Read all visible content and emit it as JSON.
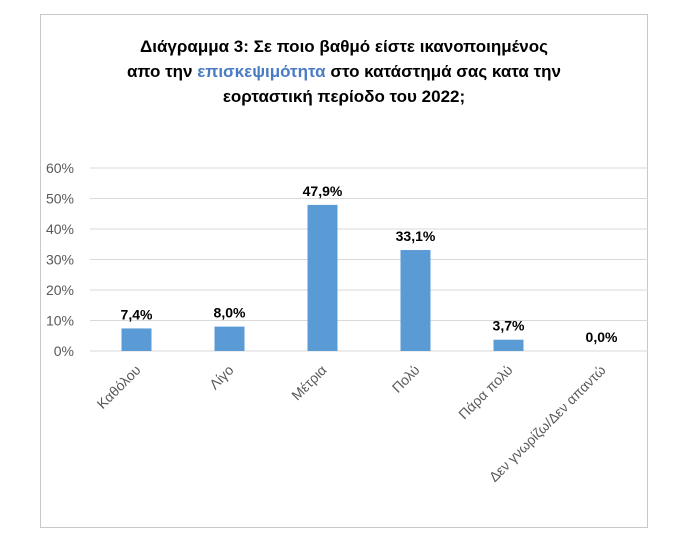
{
  "chart_data": {
    "type": "bar",
    "title_parts": [
      {
        "text": "Διάγραμμα 3: Σε ποιο βαθμό είστε ικανοποιημένος",
        "highlight": false,
        "break": true
      },
      {
        "text": "απο την ",
        "highlight": false,
        "break": false
      },
      {
        "text": "επισκεψιμότητα",
        "highlight": true,
        "break": false
      },
      {
        "text": " στο κατάστημά σας κατα την",
        "highlight": false,
        "break": true
      },
      {
        "text": "εορταστική περίοδο του 2022;",
        "highlight": false,
        "break": false
      }
    ],
    "categories": [
      "Καθόλου",
      "Λίγο",
      "Μέτρια",
      "Πολύ",
      "Πάρα πολύ",
      "Δεν γνωρίζω/Δεν απαντώ"
    ],
    "values": [
      7.4,
      8.0,
      47.9,
      33.1,
      3.7,
      0.0
    ],
    "data_labels": [
      "7,4%",
      "8,0%",
      "47,9%",
      "33,1%",
      "3,7%",
      "0,0%"
    ],
    "ylim": [
      0,
      60
    ],
    "yticks": [
      0,
      10,
      20,
      30,
      40,
      50,
      60
    ],
    "ytick_labels": [
      "0%",
      "10%",
      "20%",
      "30%",
      "40%",
      "50%",
      "60%"
    ],
    "grid": true,
    "legend": "none",
    "colors": {
      "bar": "#5b9bd5",
      "grid": "#d9d9d9",
      "highlight_text": "#4a7cc3",
      "axis_text": "#595959",
      "label_text": "#000000"
    }
  }
}
